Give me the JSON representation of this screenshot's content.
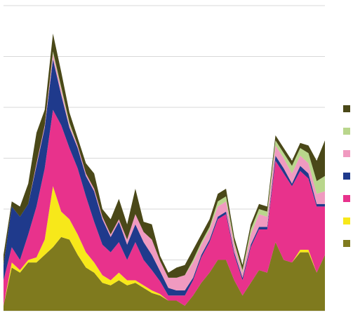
{
  "chart_data": {
    "type": "stacked-area",
    "x": [
      0,
      1,
      2,
      3,
      4,
      5,
      6,
      7,
      8,
      9,
      10,
      11,
      12,
      13,
      14,
      15,
      16,
      17,
      18,
      19,
      20,
      21,
      22,
      23,
      24,
      25,
      26,
      27,
      28,
      29,
      30,
      31,
      32,
      33,
      34,
      35,
      36,
      37,
      38,
      39
    ],
    "xlim": [
      0,
      39
    ],
    "ylim": [
      0,
      6
    ],
    "yticks": [
      0,
      1,
      2,
      3,
      4,
      5,
      6
    ],
    "grid": true,
    "legend": "right",
    "series": [
      {
        "color": "#7f7a1e",
        "values": [
          0.1,
          0.85,
          0.75,
          0.95,
          0.95,
          1.1,
          1.25,
          1.45,
          1.4,
          1.1,
          0.85,
          0.75,
          0.55,
          0.5,
          0.6,
          0.5,
          0.55,
          0.45,
          0.35,
          0.3,
          0.2,
          0.2,
          0.1,
          0.3,
          0.55,
          0.75,
          1.0,
          1.0,
          0.6,
          0.3,
          0.55,
          0.8,
          0.75,
          1.35,
          1.0,
          0.95,
          1.15,
          1.15,
          0.75,
          1.1
        ]
      },
      {
        "color": "#f7e81a",
        "values": [
          0,
          0.1,
          0.05,
          0.05,
          0.1,
          0.3,
          1.2,
          0.5,
          0.4,
          0.4,
          0.3,
          0.2,
          0.15,
          0.1,
          0.15,
          0.1,
          0.05,
          0.05,
          0.05,
          0.03,
          0,
          0,
          0,
          0,
          0,
          0,
          0,
          0,
          0,
          0,
          0,
          0,
          0,
          0,
          0,
          0,
          0.05,
          0.05,
          0,
          0
        ]
      },
      {
        "color": "#e8328c",
        "values": [
          0.5,
          0.3,
          0.2,
          0.5,
          1.0,
          1.4,
          1.5,
          1.7,
          1.4,
          1.3,
          1.1,
          0.8,
          0.6,
          0.55,
          0.6,
          0.4,
          0.75,
          0.5,
          0.4,
          0.25,
          0.1,
          0.1,
          0.2,
          0.3,
          0.5,
          0.6,
          0.8,
          0.9,
          0.5,
          0.3,
          0.7,
          0.8,
          0.85,
          1.6,
          1.7,
          1.5,
          1.55,
          1.4,
          1.3,
          0.95
        ]
      },
      {
        "color": "#1f3a8c",
        "values": [
          0.3,
          0.8,
          0.85,
          0.6,
          0.8,
          0.8,
          1.0,
          0.6,
          0.4,
          0.4,
          0.4,
          0.6,
          0.5,
          0.3,
          0.4,
          0.3,
          0.35,
          0.35,
          0.3,
          0.2,
          0.15,
          0.1,
          0.1,
          0.05,
          0.05,
          0.05,
          0.05,
          0.05,
          0.05,
          0.05,
          0.05,
          0.05,
          0.05,
          0.1,
          0.1,
          0.05,
          0.1,
          0.1,
          0.05,
          0.05
        ]
      },
      {
        "color": "#f09ac0",
        "values": [
          0,
          0,
          0,
          0,
          0.05,
          0.05,
          0.1,
          0.1,
          0.05,
          0.05,
          0.05,
          0.05,
          0.05,
          0.05,
          0.05,
          0.1,
          0.2,
          0.2,
          0.3,
          0.2,
          0.2,
          0.25,
          0.3,
          0.3,
          0.2,
          0.2,
          0.2,
          0.2,
          0.15,
          0.1,
          0.2,
          0.25,
          0.2,
          0.2,
          0.2,
          0.2,
          0.2,
          0.2,
          0.2,
          0.25
        ]
      },
      {
        "color": "#b9d68c",
        "values": [
          0,
          0,
          0,
          0,
          0,
          0,
          0.05,
          0.05,
          0.05,
          0,
          0,
          0,
          0,
          0,
          0,
          0,
          0,
          0,
          0,
          0,
          0,
          0,
          0,
          0.05,
          0.05,
          0.05,
          0.1,
          0.1,
          0.05,
          0.05,
          0.1,
          0.1,
          0.1,
          0.1,
          0.1,
          0.15,
          0.15,
          0.2,
          0.25,
          0.3
        ]
      },
      {
        "color": "#4a4818",
        "values": [
          0.2,
          0.1,
          0.2,
          0.4,
          0.6,
          0.3,
          0.35,
          0.3,
          0.2,
          0.15,
          0.2,
          0.3,
          0.15,
          0.3,
          0.4,
          0.3,
          0.5,
          0.2,
          0.3,
          0.1,
          0.1,
          0.2,
          0.2,
          0.2,
          0.15,
          0.15,
          0.15,
          0.15,
          0.1,
          0.1,
          0.1,
          0.1,
          0.1,
          0.1,
          0.1,
          0.1,
          0.1,
          0.15,
          0.4,
          0.7
        ]
      }
    ]
  }
}
